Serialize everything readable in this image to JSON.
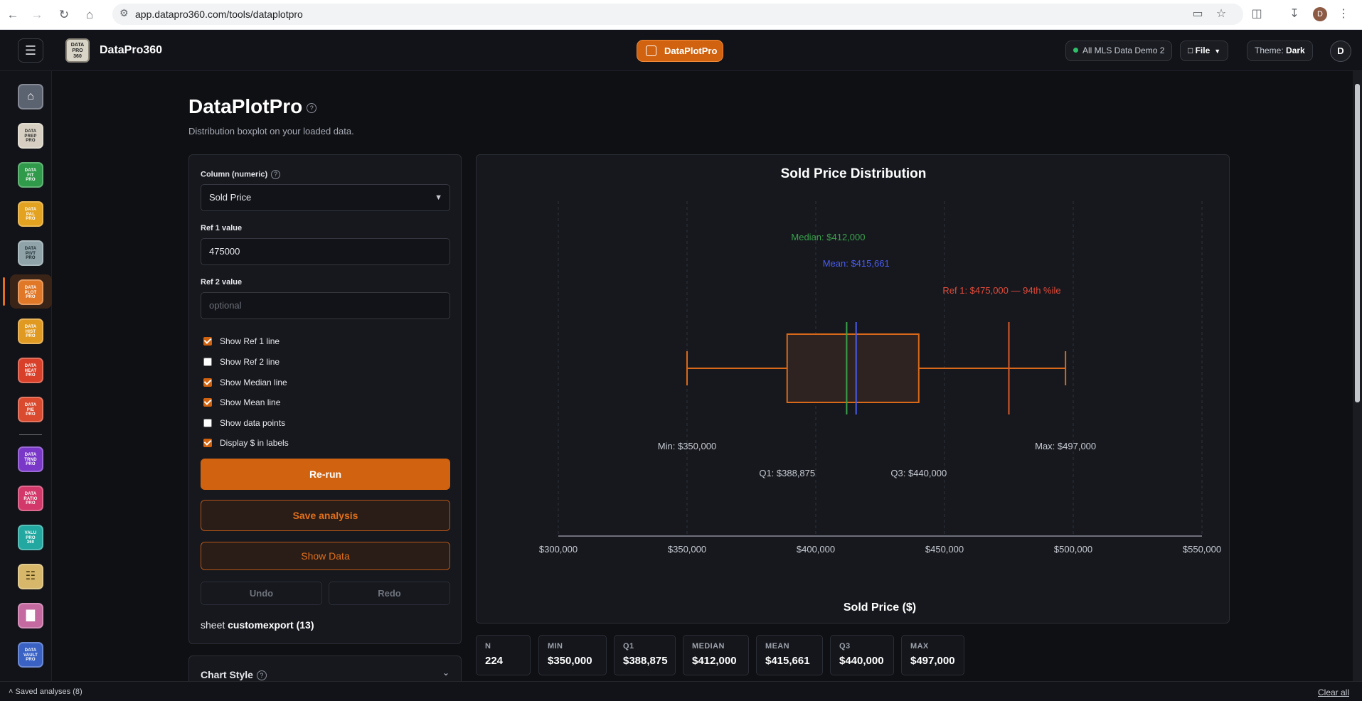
{
  "browser": {
    "url": "app.datapro360.com/tools/dataplotpro",
    "profile_initial": "D"
  },
  "header": {
    "brand_name": "DataPro360",
    "logo_lines": [
      "DATA",
      "PRO",
      "360"
    ],
    "active_app": "DataPlotPro",
    "dataset": "All MLS Data Demo 2",
    "file_menu": "File",
    "theme_label": "Theme:",
    "theme_value": "Dark",
    "user_initial": "D"
  },
  "sidebar": {
    "items": [
      {
        "id": "home",
        "lines": [],
        "icon": "home-icon",
        "bg": "#5b6270",
        "fg": "#ffffff"
      },
      {
        "id": "data-prep-pro",
        "lines": [
          "DATA",
          "PREP",
          "PRO"
        ],
        "bg": "#d7d0c2",
        "fg": "#2a2a2a"
      },
      {
        "id": "data-fit-pro",
        "lines": [
          "DATA",
          "FIT",
          "PRO"
        ],
        "bg": "#2f9a4a",
        "fg": "#ffffff"
      },
      {
        "id": "data-pal-pro",
        "lines": [
          "DATA",
          "PAL",
          "PRO"
        ],
        "bg": "#e3a21f",
        "fg": "#ffffff"
      },
      {
        "id": "data-pivt-pro",
        "lines": [
          "DATA",
          "PIVT",
          "PRO"
        ],
        "bg": "#8fa3a8",
        "fg": "#1c2a2e"
      },
      {
        "id": "data-plot-pro",
        "lines": [
          "DATA",
          "PLOT",
          "PRO"
        ],
        "bg": "#e07828",
        "fg": "#ffffff",
        "active": true
      },
      {
        "id": "data-hist-pro",
        "lines": [
          "DATA",
          "HIST",
          "PRO"
        ],
        "bg": "#e09a22",
        "fg": "#ffffff"
      },
      {
        "id": "data-heat-pro",
        "lines": [
          "DATA",
          "HEAT",
          "PRO"
        ],
        "bg": "#d9402a",
        "fg": "#ffffff"
      },
      {
        "id": "data-pie-pro",
        "lines": [
          "DATA",
          "PIE",
          "PRO"
        ],
        "bg": "#d94a2f",
        "fg": "#ffffff"
      },
      {
        "id": "data-trnd-pro",
        "lines": [
          "DATA",
          "TRND",
          "PRO"
        ],
        "bg": "#7a38c9",
        "fg": "#ffffff"
      },
      {
        "id": "data-ratio-pro",
        "lines": [
          "DATA",
          "RATIO",
          "PRO"
        ],
        "bg": "#d2386a",
        "fg": "#ffffff"
      },
      {
        "id": "valu-pro-360",
        "lines": [
          "VALU",
          "PRO",
          "360"
        ],
        "bg": "#22a8a0",
        "fg": "#ffffff"
      },
      {
        "id": "report-builder",
        "lines": [],
        "icon": "grid-report-icon",
        "bg": "#d7b86a",
        "fg": "#4a3a10"
      },
      {
        "id": "bar-report",
        "lines": [],
        "icon": "bar-document-icon",
        "bg": "#c46aa0",
        "fg": "#ffffff"
      },
      {
        "id": "data-vault-pro",
        "lines": [
          "DATA",
          "VAULT",
          "PRO"
        ],
        "bg": "#3a62c4",
        "fg": "#ffffff"
      }
    ]
  },
  "page": {
    "title": "DataPlotPro",
    "subtitle": "Distribution boxplot on your loaded data."
  },
  "controls": {
    "column_label": "Column (numeric)",
    "column_value": "Sold Price",
    "ref1_label": "Ref 1 value",
    "ref1_value": "475000",
    "ref2_label": "Ref 2 value",
    "ref2_placeholder": "optional",
    "checkboxes": [
      {
        "label": "Show Ref 1 line",
        "checked": true
      },
      {
        "label": "Show Ref 2 line",
        "checked": false
      },
      {
        "label": "Show Median line",
        "checked": true
      },
      {
        "label": "Show Mean line",
        "checked": true
      },
      {
        "label": "Show data points",
        "checked": false
      },
      {
        "label": "Display $ in labels",
        "checked": true
      }
    ],
    "rerun": "Re-run",
    "save": "Save analysis",
    "show_data": "Show Data",
    "undo": "Undo",
    "redo": "Redo",
    "sheet_prefix": "sheet",
    "sheet_name": "customexport (13)",
    "chart_style": "Chart Style"
  },
  "chart_data": {
    "type": "boxplot",
    "title": "Sold Price Distribution",
    "xlabel": "Sold Price ($)",
    "xlim": [
      300000,
      550000
    ],
    "ticks": [
      300000,
      350000,
      400000,
      450000,
      500000,
      550000
    ],
    "tick_labels": [
      "$300,000",
      "$350,000",
      "$400,000",
      "$450,000",
      "$500,000",
      "$550,000"
    ],
    "grid": true,
    "min": 350000,
    "q1": 388875,
    "median": 412000,
    "mean": 415661,
    "q3": 440000,
    "max": 497000,
    "ref1": 475000,
    "labels": {
      "min": "Min: $350,000",
      "q1": "Q1: $388,875",
      "median": "Median: $412,000",
      "mean": "Mean: $415,661",
      "q3": "Q3: $440,000",
      "max": "Max: $497,000",
      "ref1": "Ref 1: $475,000 — 94th %ile"
    },
    "colors": {
      "box": "#d8691a",
      "box_fill": "#2e2320",
      "median": "#3aa14a",
      "mean": "#4a5cf0",
      "ref1": "#d85a2a",
      "ref1_label": "#e24b3a",
      "grid": "#2f3239",
      "axis": "#8a8e98",
      "text": "#c8cbd3"
    }
  },
  "stats": [
    {
      "label": "N",
      "value": "224"
    },
    {
      "label": "MIN",
      "value": "$350,000"
    },
    {
      "label": "Q1",
      "value": "$388,875"
    },
    {
      "label": "MEDIAN",
      "value": "$412,000"
    },
    {
      "label": "MEAN",
      "value": "$415,661"
    },
    {
      "label": "Q3",
      "value": "$440,000"
    },
    {
      "label": "MAX",
      "value": "$497,000"
    }
  ],
  "footer": {
    "saved": "Saved analyses (8)",
    "clear": "Clear all"
  }
}
